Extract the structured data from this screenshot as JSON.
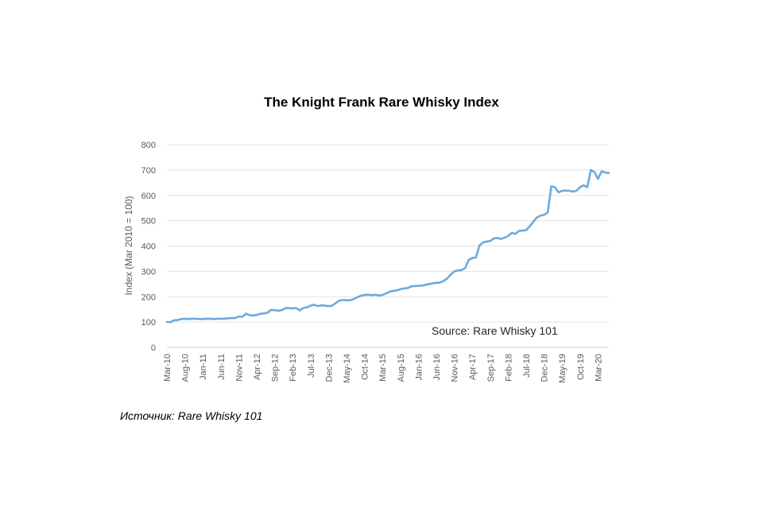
{
  "chart_data": {
    "type": "line",
    "title": "The Knight Frank Rare Whisky Index",
    "ylabel": "Index (Mar 2010 = 100)",
    "xlabel": "",
    "ylim": [
      0,
      800
    ],
    "yticks": [
      0,
      100,
      200,
      300,
      400,
      500,
      600,
      700,
      800
    ],
    "grid": true,
    "legend": "none",
    "annotation": "Source: Rare Whisky 101",
    "x_ticks": [
      "Mar-10",
      "Aug-10",
      "Jan-11",
      "Jun-11",
      "Nov-11",
      "Apr-12",
      "Sep-12",
      "Feb-13",
      "Jul-13",
      "Dec-13",
      "May-14",
      "Oct-14",
      "Mar-15",
      "Aug-15",
      "Jan-16",
      "Jun-16",
      "Nov-16",
      "Apr-17",
      "Sep-17",
      "Feb-18",
      "Jul-18",
      "Dec-18",
      "May-19",
      "Oct-19",
      "Mar-20"
    ],
    "line_color": "#6fa8d8",
    "series": [
      {
        "values": [
          [
            0,
            100
          ],
          [
            1,
            100
          ],
          [
            2,
            107
          ],
          [
            3,
            108
          ],
          [
            4,
            112
          ],
          [
            5,
            113
          ],
          [
            6,
            112
          ],
          [
            7,
            113
          ],
          [
            8,
            113
          ],
          [
            9,
            112
          ],
          [
            10,
            112
          ],
          [
            11,
            113
          ],
          [
            12,
            113
          ],
          [
            13,
            112
          ],
          [
            14,
            113
          ],
          [
            15,
            113
          ],
          [
            16,
            113
          ],
          [
            17,
            115
          ],
          [
            18,
            116
          ],
          [
            19,
            116
          ],
          [
            20,
            122
          ],
          [
            21,
            121
          ],
          [
            22,
            133
          ],
          [
            23,
            127
          ],
          [
            24,
            126
          ],
          [
            25,
            128
          ],
          [
            26,
            133
          ],
          [
            27,
            134
          ],
          [
            28,
            137
          ],
          [
            29,
            148
          ],
          [
            30,
            147
          ],
          [
            31,
            145
          ],
          [
            32,
            147
          ],
          [
            33,
            155
          ],
          [
            34,
            155
          ],
          [
            35,
            154
          ],
          [
            36,
            155
          ],
          [
            37,
            146
          ],
          [
            38,
            156
          ],
          [
            39,
            158
          ],
          [
            40,
            165
          ],
          [
            41,
            168
          ],
          [
            42,
            163
          ],
          [
            43,
            166
          ],
          [
            44,
            165
          ],
          [
            45,
            163
          ],
          [
            46,
            165
          ],
          [
            47,
            175
          ],
          [
            48,
            185
          ],
          [
            49,
            187
          ],
          [
            50,
            186
          ],
          [
            51,
            186
          ],
          [
            52,
            191
          ],
          [
            53,
            198
          ],
          [
            54,
            204
          ],
          [
            55,
            207
          ],
          [
            56,
            208
          ],
          [
            57,
            206
          ],
          [
            58,
            208
          ],
          [
            59,
            205
          ],
          [
            60,
            207
          ],
          [
            61,
            213
          ],
          [
            62,
            220
          ],
          [
            63,
            223
          ],
          [
            64,
            225
          ],
          [
            65,
            230
          ],
          [
            66,
            233
          ],
          [
            67,
            234
          ],
          [
            68,
            241
          ],
          [
            69,
            242
          ],
          [
            70,
            243
          ],
          [
            71,
            244
          ],
          [
            72,
            247
          ],
          [
            73,
            250
          ],
          [
            74,
            253
          ],
          [
            75,
            255
          ],
          [
            76,
            256
          ],
          [
            77,
            262
          ],
          [
            78,
            272
          ],
          [
            79,
            288
          ],
          [
            80,
            300
          ],
          [
            81,
            304
          ],
          [
            82,
            305
          ],
          [
            83,
            313
          ],
          [
            84,
            345
          ],
          [
            85,
            353
          ],
          [
            86,
            355
          ],
          [
            87,
            402
          ],
          [
            88,
            414
          ],
          [
            89,
            418
          ],
          [
            90,
            420
          ],
          [
            91,
            430
          ],
          [
            92,
            432
          ],
          [
            93,
            428
          ],
          [
            94,
            433
          ],
          [
            95,
            440
          ],
          [
            96,
            452
          ],
          [
            97,
            448
          ],
          [
            98,
            460
          ],
          [
            99,
            461
          ],
          [
            100,
            463
          ],
          [
            101,
            478
          ],
          [
            102,
            496
          ],
          [
            103,
            513
          ],
          [
            104,
            520
          ],
          [
            105,
            523
          ],
          [
            106,
            533
          ],
          [
            107,
            636
          ],
          [
            108,
            632
          ],
          [
            109,
            612
          ],
          [
            110,
            618
          ],
          [
            111,
            619
          ],
          [
            112,
            618
          ],
          [
            113,
            615
          ],
          [
            114,
            618
          ],
          [
            115,
            632
          ],
          [
            116,
            640
          ],
          [
            117,
            632
          ],
          [
            118,
            700
          ],
          [
            119,
            692
          ],
          [
            120,
            665
          ],
          [
            121,
            695
          ],
          [
            122,
            690
          ],
          [
            123,
            688
          ]
        ]
      }
    ],
    "x_max": 123,
    "x_tick_step": 5
  },
  "footnote": "Источник: Rare Whisky 101"
}
